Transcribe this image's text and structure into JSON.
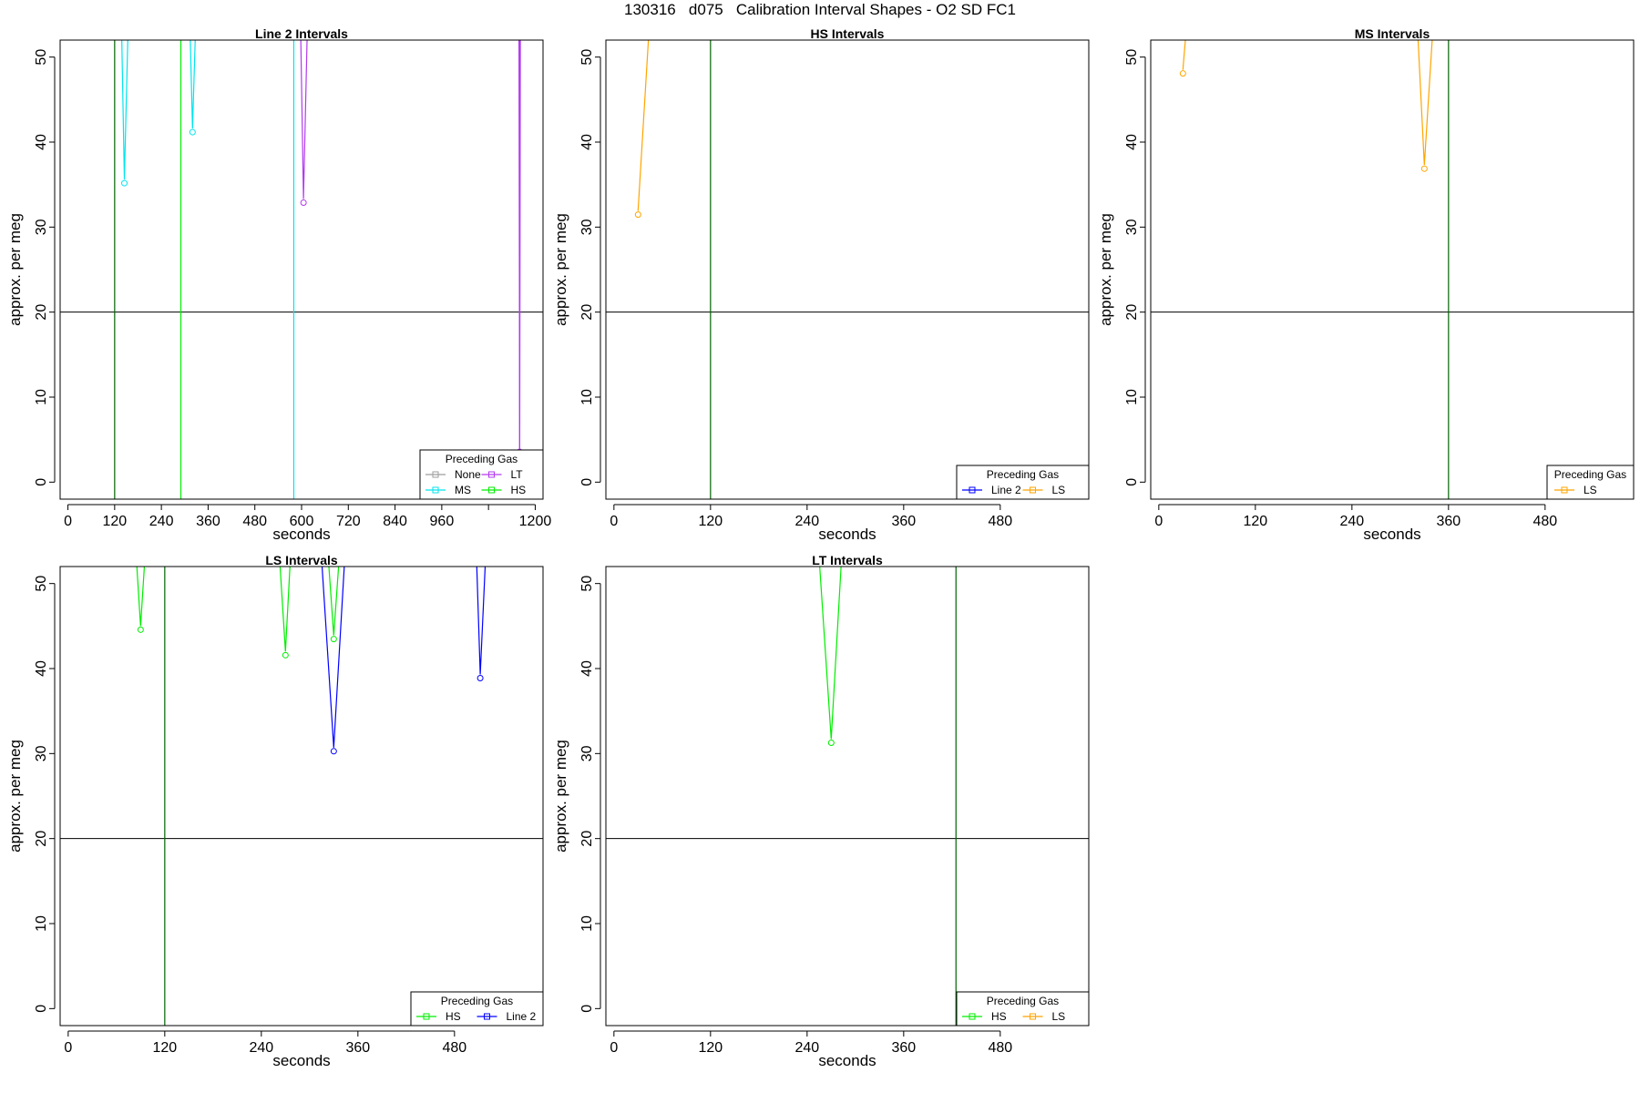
{
  "page": {
    "title": "130316   d075   Calibration Interval Shapes - O2 SD FC1"
  },
  "colors": {
    "None": "#9e9e9e",
    "MS": "#00e5ee",
    "LT": "#b23aee",
    "HS": "#00ee00",
    "Line 2": "#0000ff",
    "LS": "#ffa500",
    "vline": "#006400",
    "hline": "#000000"
  },
  "chart_data": [
    {
      "type": "line",
      "title": "Line 2 Intervals",
      "xlabel": "seconds",
      "ylabel": "approx. per meg",
      "xlim": [
        -20,
        1220
      ],
      "ylim": [
        -2,
        52
      ],
      "xticks": [
        0,
        120,
        240,
        360,
        480,
        600,
        720,
        840,
        960,
        1200
      ],
      "xtick_labels": [
        "0",
        "120",
        "240",
        "360",
        "480",
        "600",
        "720",
        "840",
        "960",
        "1200"
      ],
      "extra_xticks": [
        1080
      ],
      "yticks": [
        0,
        10,
        20,
        30,
        40,
        50
      ],
      "hline": 20,
      "vlines": [
        {
          "x": 120,
          "color": "#006400"
        },
        {
          "x": 290,
          "color": "#00ee00"
        },
        {
          "x": 580,
          "color": "#00e5ee"
        },
        {
          "x": 1160,
          "color": "#b23aee"
        }
      ],
      "legend": {
        "title": "Preceding Gas",
        "position": "bottom-right",
        "columns": 2,
        "entries": [
          "None",
          "LT",
          "MS",
          "HS"
        ]
      },
      "series": [
        {
          "gas": "MS",
          "x": [
            135,
            145,
            158
          ],
          "y": [
            60,
            35.6,
            60
          ]
        },
        {
          "gas": "MS",
          "x": [
            310,
            320,
            332
          ],
          "y": [
            60,
            41.6,
            60
          ]
        },
        {
          "gas": "LT",
          "x": [
            595,
            605,
            618
          ],
          "y": [
            60,
            33.3,
            60
          ]
        },
        {
          "gas": "LT",
          "x": [
            1158,
            1160,
            1162
          ],
          "y": [
            60,
            4,
            60
          ]
        }
      ]
    },
    {
      "type": "line",
      "title": "HS Intervals",
      "xlabel": "seconds",
      "ylabel": "approx. per meg",
      "xlim": [
        -10,
        590
      ],
      "ylim": [
        -2,
        52
      ],
      "xticks": [
        0,
        120,
        240,
        360,
        480
      ],
      "xtick_labels": [
        "0",
        "120",
        "240",
        "360",
        "480"
      ],
      "yticks": [
        0,
        10,
        20,
        30,
        40,
        50
      ],
      "hline": 20,
      "vlines": [
        {
          "x": 120,
          "color": "#006400"
        }
      ],
      "legend": {
        "title": "Preceding Gas",
        "position": "bottom-right",
        "columns": 2,
        "entries": [
          "Line 2",
          "LS"
        ]
      },
      "series": [
        {
          "gas": "LS",
          "x": [
            30,
            48
          ],
          "y": [
            31.9,
            60
          ]
        }
      ]
    },
    {
      "type": "line",
      "title": "MS Intervals",
      "xlabel": "seconds",
      "ylabel": "approx. per meg",
      "xlim": [
        -10,
        590
      ],
      "ylim": [
        -2,
        52
      ],
      "xticks": [
        0,
        120,
        240,
        360,
        480
      ],
      "xtick_labels": [
        "0",
        "120",
        "240",
        "360",
        "480"
      ],
      "yticks": [
        0,
        10,
        20,
        30,
        40,
        50
      ],
      "hline": 20,
      "vlines": [
        {
          "x": 360,
          "color": "#006400"
        }
      ],
      "legend": {
        "title": "Preceding Gas",
        "position": "bottom-right",
        "columns": 1,
        "entries": [
          "LS"
        ]
      },
      "series": [
        {
          "gas": "LS",
          "x": [
            30,
            40
          ],
          "y": [
            48.5,
            60
          ]
        },
        {
          "gas": "LS",
          "x": [
            318,
            330,
            345
          ],
          "y": [
            60,
            37.3,
            60
          ]
        }
      ]
    },
    {
      "type": "line",
      "title": "LS Intervals",
      "xlabel": "seconds",
      "ylabel": "approx. per meg",
      "xlim": [
        -10,
        590
      ],
      "ylim": [
        -2,
        52
      ],
      "xticks": [
        0,
        120,
        240,
        360,
        480
      ],
      "xtick_labels": [
        "0",
        "120",
        "240",
        "360",
        "480"
      ],
      "yticks": [
        0,
        10,
        20,
        30,
        40,
        50
      ],
      "hline": 20,
      "vlines": [
        {
          "x": 120,
          "color": "#006400"
        }
      ],
      "legend": {
        "title": "Preceding Gas",
        "position": "bottom-right",
        "columns": 2,
        "entries": [
          "HS",
          "Line 2"
        ]
      },
      "series": [
        {
          "gas": "HS",
          "x": [
            80,
            90,
            100
          ],
          "y": [
            60,
            45,
            60
          ]
        },
        {
          "gas": "HS",
          "x": [
            258,
            270,
            280
          ],
          "y": [
            60,
            42,
            60
          ]
        },
        {
          "gas": "HS",
          "x": [
            318,
            330,
            342
          ],
          "y": [
            60,
            43.9,
            60
          ]
        },
        {
          "gas": "Line 2",
          "x": [
            310,
            330,
            348
          ],
          "y": [
            60,
            30.7,
            60
          ]
        },
        {
          "gas": "Line 2",
          "x": [
            505,
            512,
            522
          ],
          "y": [
            60,
            39.3,
            60
          ]
        }
      ]
    },
    {
      "type": "line",
      "title": "LT Intervals",
      "xlabel": "seconds",
      "ylabel": "approx. per meg",
      "xlim": [
        -10,
        590
      ],
      "ylim": [
        -2,
        52
      ],
      "xticks": [
        0,
        120,
        240,
        360,
        480
      ],
      "xtick_labels": [
        "0",
        "120",
        "240",
        "360",
        "480"
      ],
      "yticks": [
        0,
        10,
        20,
        30,
        40,
        50
      ],
      "hline": 20,
      "vlines": [
        {
          "x": 425,
          "color": "#006400"
        }
      ],
      "legend": {
        "title": "Preceding Gas",
        "position": "bottom-right",
        "columns": 2,
        "entries": [
          "HS",
          "LS"
        ]
      },
      "series": [
        {
          "gas": "HS",
          "x": [
            250,
            270,
            287
          ],
          "y": [
            60,
            31.7,
            60
          ]
        }
      ]
    }
  ]
}
